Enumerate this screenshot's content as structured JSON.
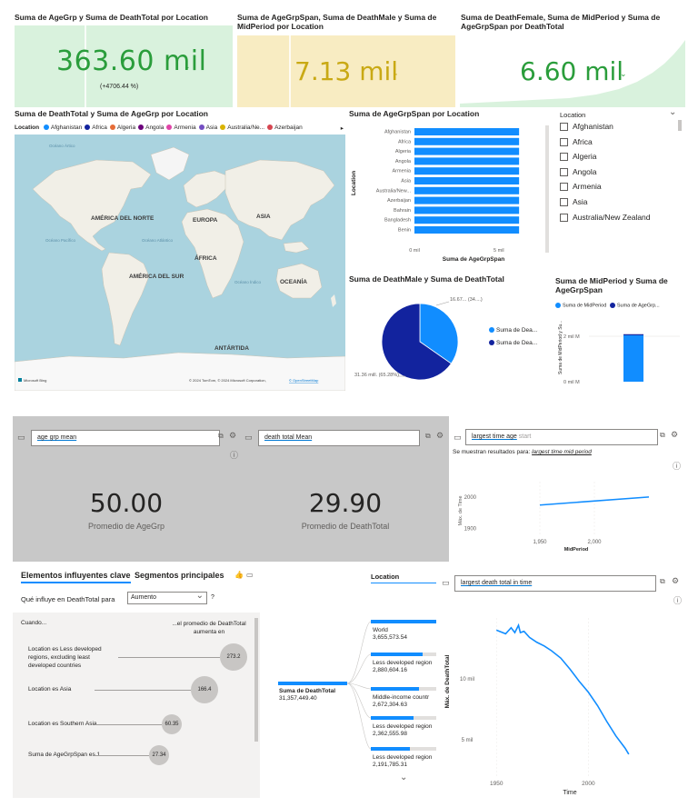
{
  "kpi": [
    {
      "title": "Suma de AgeGrp y Suma de DeathTotal por Location",
      "value": "363.60 mil",
      "sub": "(+4706.44 %)",
      "bg": "#d9f2dd",
      "color": "#2a9d3b"
    },
    {
      "title": "Suma de AgeGrpSpan, Suma de DeathMale y Suma de MidPeriod por Location",
      "value": "7.13 mil",
      "bg": "#f8ecc2",
      "color": "#c9a914"
    },
    {
      "title": "Suma de DeathFemale, Suma de MidPeriod y Suma de AgeGrpSpan por DeathTotal",
      "value": "6.60 mil",
      "bg": "#ffffff",
      "color": "#2a9d3b"
    }
  ],
  "map": {
    "title": "Suma de DeathTotal y Suma de AgeGrp por Location",
    "legend_label": "Location",
    "legend_items": [
      {
        "name": "Afghanistan",
        "color": "#118dff"
      },
      {
        "name": "Africa",
        "color": "#12239e"
      },
      {
        "name": "Algeria",
        "color": "#e66c37"
      },
      {
        "name": "Angola",
        "color": "#6b007b"
      },
      {
        "name": "Armenia",
        "color": "#e044a7"
      },
      {
        "name": "Asia",
        "color": "#744ec2"
      },
      {
        "name": "Australia/Ne...",
        "color": "#d9b300"
      },
      {
        "name": "Azerbaijan",
        "color": "#d64550"
      }
    ],
    "continents": [
      "AMÉRICA DEL NORTE",
      "EUROPA",
      "ASIA",
      "ÁFRICA",
      "AMÉRICA DEL SUR",
      "OCEANÍA",
      "ANTÁRTIDA"
    ],
    "oceans": [
      "Océano Ártico",
      "Océano Pacífico",
      "Océano Atlántico",
      "Océano Índico"
    ],
    "brand": "Microsoft Bing",
    "credit": "© 2024 TomTom, © 2024 Microsoft Corporation,",
    "credit_link": "© OpenStreetMap"
  },
  "bar_chart": {
    "title": "Suma de AgeGrpSpan por Location",
    "ylabel": "Location",
    "xlabel": "Suma de AgeGrpSpan",
    "ticks": [
      "0 mil",
      "5 mil"
    ]
  },
  "slicer": {
    "title": "Location",
    "items": [
      "Afghanistan",
      "Africa",
      "Algeria",
      "Angola",
      "Armenia",
      "Asia",
      "Australia/New Zealand"
    ]
  },
  "pie": {
    "title": "Suma de DeathMale y Suma de DeathTotal",
    "label_small": "16.67... (34....)",
    "label_big": "31.36 mill. (65.28%)",
    "legend": [
      "Suma de Dea...",
      "Suma de Dea..."
    ]
  },
  "midperiod_chart": {
    "title": "Suma de MidPeriod y Suma de AgeGrpSpan",
    "legend": [
      "Suma de MidPeriod",
      "Suma de AgeGrp..."
    ],
    "ylabel": "Suma de MidPeriod y Su...",
    "ticks": [
      "2 mil M",
      "0 mil M"
    ]
  },
  "qa": [
    {
      "query": "age grp mean",
      "value": "50.00",
      "label": "Promedio de AgeGrp"
    },
    {
      "query": "death total Mean",
      "value": "29.90",
      "label": "Promedio de DeathTotal"
    }
  ],
  "qa_line": {
    "query": "largest time age",
    "query_hint": "start",
    "result_prefix": "Se muestran resultados para:",
    "result_query": "largest time mid period",
    "ylabel": "Máx. de Time",
    "xlabel": "MidPeriod",
    "yticks": [
      "2000",
      "1900"
    ],
    "xticks": [
      "1,950",
      "2,000"
    ]
  },
  "key_influencers": {
    "tab_active": "Elementos influyentes clave",
    "tab_other": "Segmentos principales",
    "question": "Qué influye en DeathTotal para",
    "dropdown": "Aumento",
    "help": "?",
    "col_when": "Cuando...",
    "col_avg": "...el promedio de DeathTotal aumenta en",
    "rows": [
      {
        "label": "Location es Less developed regions, excluding least developed countries",
        "value": "273.2"
      },
      {
        "label": "Location es Asia",
        "value": "166.4"
      },
      {
        "label": "Location es Southern Asia",
        "value": "60.35"
      },
      {
        "label": "Suma de AgeGrpSpan es 1",
        "value": "27.34"
      }
    ]
  },
  "decomp_tree": {
    "header": "Location",
    "root_label": "Suma de DeathTotal",
    "root_value": "31,357,449.40",
    "nodes": [
      {
        "name": "World",
        "value": "3,655,573.54"
      },
      {
        "name": "Less developed region",
        "value": "2,880,604.16"
      },
      {
        "name": "Middle-income countr",
        "value": "2,672,304.63"
      },
      {
        "name": "Less developed region",
        "value": "2,362,555.98"
      },
      {
        "name": "Less developed region",
        "value": "2,191,785.31"
      }
    ]
  },
  "qa_line2": {
    "query": "largest death total in time",
    "ylabel": "Máx. de DeathTotal",
    "xlabel": "Time",
    "yticks": [
      "10 mil",
      "5 mil"
    ],
    "xticks": [
      "1950",
      "2000"
    ]
  },
  "chart_data": [
    {
      "type": "bar",
      "title": "Suma de AgeGrpSpan por Location",
      "xlabel": "Suma de AgeGrpSpan",
      "ylabel": "Location",
      "categories": [
        "Afghanistan",
        "Africa",
        "Algeria",
        "Angola",
        "Armenia",
        "Asia",
        "Australia/New...",
        "Azerbaijan",
        "Bahrain",
        "Bangladesh",
        "Benin"
      ],
      "values": [
        6200,
        6200,
        6200,
        6200,
        6200,
        6200,
        6200,
        6200,
        6200,
        6200,
        6200
      ],
      "xlim": [
        0,
        7000
      ],
      "color": "#118dff"
    },
    {
      "type": "pie",
      "title": "Suma de DeathMale y Suma de DeathTotal",
      "labels": [
        "Suma de DeathMale",
        "Suma de DeathTotal"
      ],
      "values": [
        16.67,
        31.36
      ],
      "colors": [
        "#118dff",
        "#12239e"
      ]
    },
    {
      "type": "bar",
      "title": "Suma de MidPeriod y Suma de AgeGrpSpan",
      "series": [
        {
          "name": "Suma de MidPeriod",
          "values": [
            2.05
          ],
          "color": "#118dff"
        },
        {
          "name": "Suma de AgeGrp...",
          "values": [
            0.02
          ],
          "color": "#12239e"
        }
      ],
      "ylim": [
        0,
        2.5
      ]
    },
    {
      "type": "line",
      "xlabel": "MidPeriod",
      "ylabel": "Máx. de Time",
      "x": [
        1950,
        2100
      ],
      "y": [
        1975,
        2100
      ],
      "xlim": [
        1900,
        2050
      ],
      "ylim": [
        1875,
        2050
      ],
      "color": "#118dff"
    },
    {
      "type": "line",
      "xlabel": "Time",
      "ylabel": "Máx. de DeathTotal",
      "x": [
        1950,
        1955,
        1958,
        1960,
        1962,
        1963,
        1965,
        1968,
        1972,
        1976,
        1980,
        1985,
        1990,
        1995,
        2000,
        2005,
        2010,
        2015,
        2020,
        2022
      ],
      "y": [
        14000,
        13700,
        14200,
        13800,
        14400,
        13800,
        13900,
        13400,
        13000,
        12700,
        12300,
        11700,
        10800,
        9800,
        8900,
        7800,
        6500,
        5300,
        4300,
        3800
      ],
      "xlim": [
        1940,
        2030
      ],
      "ylim": [
        2000,
        15000
      ],
      "color": "#118dff"
    }
  ]
}
